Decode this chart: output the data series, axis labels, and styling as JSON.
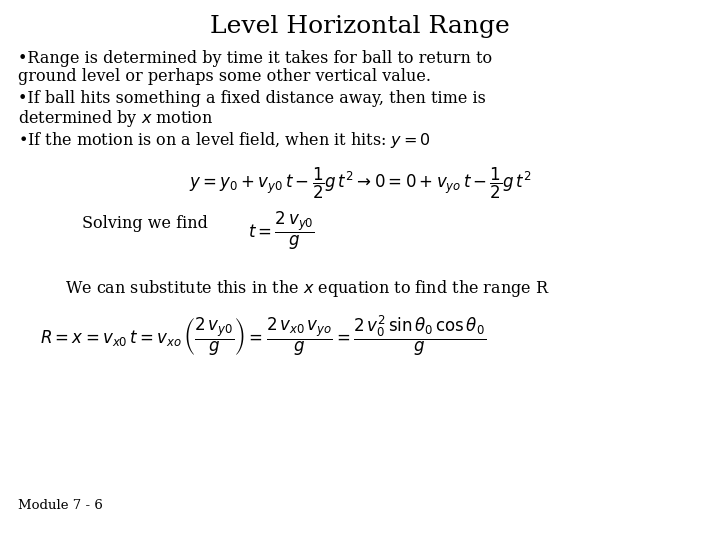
{
  "title": "Level Horizontal Range",
  "background_color": "#ffffff",
  "text_color": "#000000",
  "title_fontsize": 18,
  "body_fontsize": 11.5,
  "eq_fontsize": 12,
  "bullet1_line1": "•Range is determined by time it takes for ball to return to",
  "bullet1_line2": "ground level or perhaps some other vertical value.",
  "bullet2_line1": "•If ball hits something a fixed distance away, then time is",
  "bullet2_line2": "determined by $x$ motion",
  "bullet3": "•If the motion is on a level field, when it hits: $y = 0$",
  "eq1": "$y = y_0 + v_{y0}\\,t - \\dfrac{1}{2}g\\,t^2 \\rightarrow 0 = 0 + v_{yo}\\,t - \\dfrac{1}{2}g\\,t^2$",
  "solve_text": "Solving we find",
  "eq2": "$t = \\dfrac{2\\,v_{y0}}{g}$",
  "sub_text": "We can substitute this in the $x$ equation to find the range R",
  "eq3": "$R = x = v_{x0}\\,t = v_{xo}\\,\\left(\\dfrac{2\\,v_{y0}}{g}\\right) = \\dfrac{2\\,v_{x0}\\,v_{yo}}{g} = \\dfrac{2\\,v_0^2\\,\\sin\\theta_0\\,\\cos\\theta_0}{g}$",
  "footer": "Module 7 - 6"
}
